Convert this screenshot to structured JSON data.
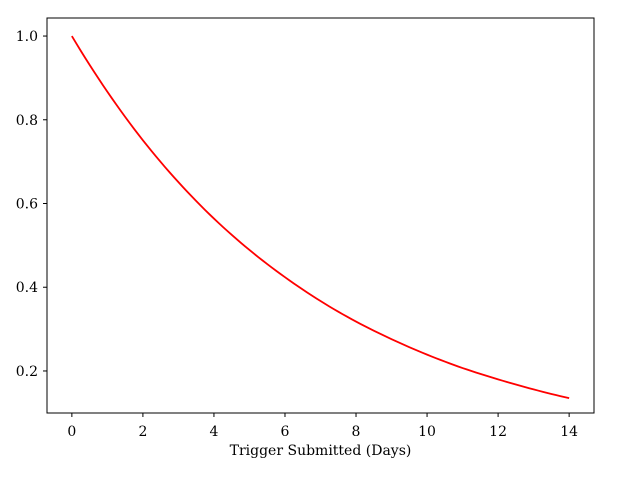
{
  "chart_data": {
    "type": "line",
    "title": "",
    "xlabel": "Trigger Submitted (Days)",
    "ylabel": "",
    "xlim": [
      -0.7,
      14.7
    ],
    "ylim": [
      0.0996,
      1.0431
    ],
    "xticks": [
      0,
      2,
      4,
      6,
      8,
      10,
      12,
      14
    ],
    "xtick_labels": [
      "0",
      "2",
      "4",
      "6",
      "8",
      "10",
      "12",
      "14"
    ],
    "yticks": [
      0.2,
      0.4,
      0.6,
      0.8,
      1.0
    ],
    "ytick_labels": [
      "0.2",
      "0.4",
      "0.6",
      "0.8",
      "1.0"
    ],
    "grid": false,
    "legend": "none",
    "series": [
      {
        "color": "#ff0000",
        "x": [
          0,
          1,
          2,
          3,
          4,
          5,
          6,
          7,
          8,
          9,
          10,
          11,
          12,
          13,
          14
        ],
        "y": [
          1.0,
          0.867,
          0.751,
          0.651,
          0.564,
          0.489,
          0.424,
          0.367,
          0.318,
          0.276,
          0.239,
          0.207,
          0.18,
          0.156,
          0.135
        ]
      }
    ]
  }
}
